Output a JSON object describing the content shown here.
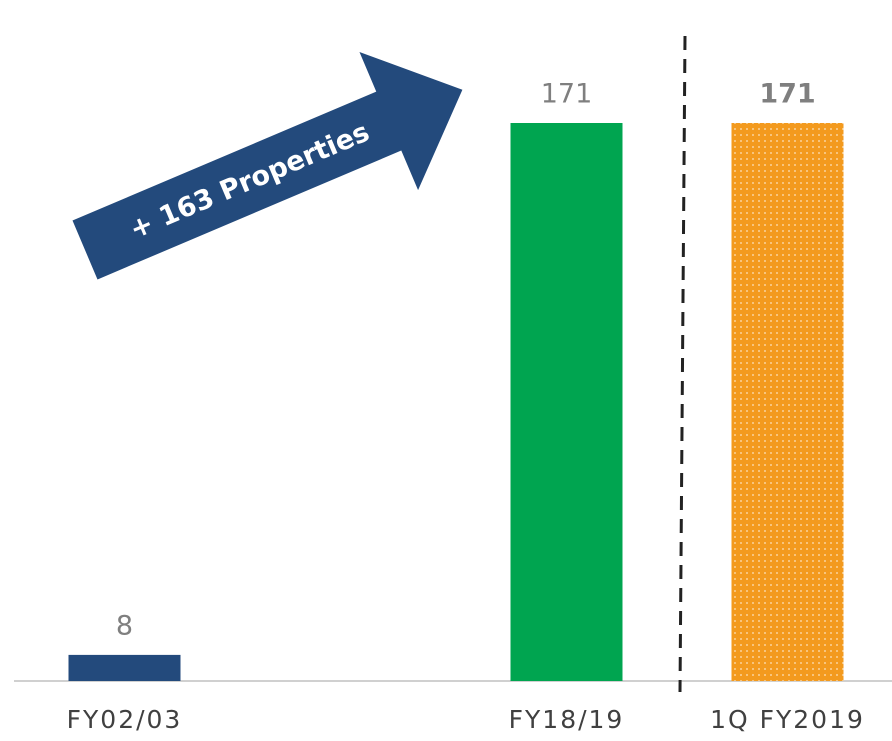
{
  "chart_data": {
    "type": "bar",
    "categories": [
      "FY02/03",
      null,
      "FY18/19",
      "1Q FY2019"
    ],
    "values": [
      8,
      null,
      171,
      171
    ],
    "colors": [
      "#234a7c",
      null,
      "#00a550",
      "#f39a1e"
    ],
    "patterns": [
      null,
      null,
      null,
      "dots"
    ],
    "annotation": "+ 163 Properties"
  }
}
